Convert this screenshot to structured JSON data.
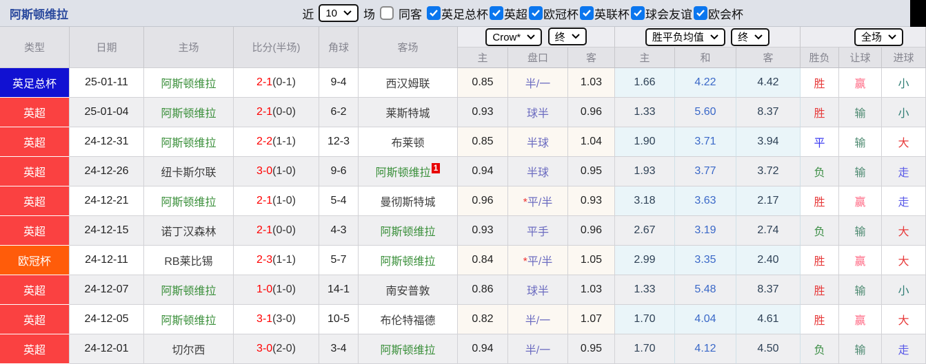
{
  "toolbar": {
    "title": "阿斯顿维拉",
    "recent_label": "近",
    "matches_select": "10",
    "matches_label": "场",
    "same_venue_label": "同客",
    "same_venue_checked": false,
    "league_filters": [
      {
        "label": "英足总杯",
        "checked": true
      },
      {
        "label": "英超",
        "checked": true
      },
      {
        "label": "欧冠杯",
        "checked": true
      },
      {
        "label": "英联杯",
        "checked": true
      },
      {
        "label": "球会友谊",
        "checked": true
      },
      {
        "label": "欧会杯",
        "checked": true
      }
    ]
  },
  "controls": {
    "bookmaker_select": "Crow*",
    "bookmaker_time_select": "终",
    "odds_select": "胜平负均值",
    "odds_time_select": "终",
    "scope_select": "全场"
  },
  "table": {
    "headers": {
      "type": "类型",
      "date": "日期",
      "home": "主场",
      "score": "比分(半场)",
      "corners": "角球",
      "away": "客场",
      "ah_home": "主",
      "ah_line": "盘口",
      "ah_away": "客",
      "avg_home": "主",
      "avg_draw": "和",
      "avg_away": "客",
      "result": "胜负",
      "handicap": "让球",
      "goals": "进球"
    },
    "rows": [
      {
        "league": "英足总杯",
        "date": "25-01-11",
        "home": "阿斯顿维拉",
        "home_villa": true,
        "score": "2-1",
        "half": "(0-1)",
        "corners": "9-4",
        "away": "西汉姆联",
        "away_villa": false,
        "away_sup": "",
        "ah_home": "0.85",
        "ah_star": false,
        "ah_line": "半/一",
        "ah_away": "1.03",
        "avg_home": "1.66",
        "avg_draw": "4.22",
        "avg_away": "4.42",
        "result": "胜",
        "result_key": "win",
        "handicap": "赢",
        "handicap_key": "win",
        "goals": "小",
        "goals_key": "under"
      },
      {
        "league": "英超",
        "date": "25-01-04",
        "home": "阿斯顿维拉",
        "home_villa": true,
        "score": "2-1",
        "half": "(0-0)",
        "corners": "6-2",
        "away": "莱斯特城",
        "away_villa": false,
        "away_sup": "",
        "ah_home": "0.93",
        "ah_star": false,
        "ah_line": "球半",
        "ah_away": "0.96",
        "avg_home": "1.33",
        "avg_draw": "5.60",
        "avg_away": "8.37",
        "result": "胜",
        "result_key": "win",
        "handicap": "输",
        "handicap_key": "lose",
        "goals": "小",
        "goals_key": "under"
      },
      {
        "league": "英超",
        "date": "24-12-31",
        "home": "阿斯顿维拉",
        "home_villa": true,
        "score": "2-2",
        "half": "(1-1)",
        "corners": "12-3",
        "away": "布莱顿",
        "away_villa": false,
        "away_sup": "",
        "ah_home": "0.85",
        "ah_star": false,
        "ah_line": "半球",
        "ah_away": "1.04",
        "avg_home": "1.90",
        "avg_draw": "3.71",
        "avg_away": "3.94",
        "result": "平",
        "result_key": "draw",
        "handicap": "输",
        "handicap_key": "lose",
        "goals": "大",
        "goals_key": "over"
      },
      {
        "league": "英超",
        "date": "24-12-26",
        "home": "纽卡斯尔联",
        "home_villa": false,
        "score": "3-0",
        "half": "(1-0)",
        "corners": "9-6",
        "away": "阿斯顿维拉",
        "away_villa": true,
        "away_sup": "1",
        "ah_home": "0.94",
        "ah_star": false,
        "ah_line": "半球",
        "ah_away": "0.95",
        "avg_home": "1.93",
        "avg_draw": "3.77",
        "avg_away": "3.72",
        "result": "负",
        "result_key": "lose",
        "handicap": "输",
        "handicap_key": "lose",
        "goals": "走",
        "goals_key": "void"
      },
      {
        "league": "英超",
        "date": "24-12-21",
        "home": "阿斯顿维拉",
        "home_villa": true,
        "score": "2-1",
        "half": "(1-0)",
        "corners": "5-4",
        "away": "曼彻斯特城",
        "away_villa": false,
        "away_sup": "",
        "ah_home": "0.96",
        "ah_star": true,
        "ah_line": "平/半",
        "ah_away": "0.93",
        "avg_home": "3.18",
        "avg_draw": "3.63",
        "avg_away": "2.17",
        "result": "胜",
        "result_key": "win",
        "handicap": "赢",
        "handicap_key": "win",
        "goals": "走",
        "goals_key": "void"
      },
      {
        "league": "英超",
        "date": "24-12-15",
        "home": "诺丁汉森林",
        "home_villa": false,
        "score": "2-1",
        "half": "(0-0)",
        "corners": "4-3",
        "away": "阿斯顿维拉",
        "away_villa": true,
        "away_sup": "",
        "ah_home": "0.93",
        "ah_star": false,
        "ah_line": "平手",
        "ah_away": "0.96",
        "avg_home": "2.67",
        "avg_draw": "3.19",
        "avg_away": "2.74",
        "result": "负",
        "result_key": "lose",
        "handicap": "输",
        "handicap_key": "lose",
        "goals": "大",
        "goals_key": "over"
      },
      {
        "league": "欧冠杯",
        "date": "24-12-11",
        "home": "RB莱比锡",
        "home_villa": false,
        "score": "2-3",
        "half": "(1-1)",
        "corners": "5-7",
        "away": "阿斯顿维拉",
        "away_villa": true,
        "away_sup": "",
        "ah_home": "0.84",
        "ah_star": true,
        "ah_line": "平/半",
        "ah_away": "1.05",
        "avg_home": "2.99",
        "avg_draw": "3.35",
        "avg_away": "2.40",
        "result": "胜",
        "result_key": "win",
        "handicap": "赢",
        "handicap_key": "win",
        "goals": "大",
        "goals_key": "over"
      },
      {
        "league": "英超",
        "date": "24-12-07",
        "home": "阿斯顿维拉",
        "home_villa": true,
        "score": "1-0",
        "half": "(1-0)",
        "corners": "14-1",
        "away": "南安普敦",
        "away_villa": false,
        "away_sup": "",
        "ah_home": "0.86",
        "ah_star": false,
        "ah_line": "球半",
        "ah_away": "1.03",
        "avg_home": "1.33",
        "avg_draw": "5.48",
        "avg_away": "8.37",
        "result": "胜",
        "result_key": "win",
        "handicap": "输",
        "handicap_key": "lose",
        "goals": "小",
        "goals_key": "under"
      },
      {
        "league": "英超",
        "date": "24-12-05",
        "home": "阿斯顿维拉",
        "home_villa": true,
        "score": "3-1",
        "half": "(3-0)",
        "corners": "10-5",
        "away": "布伦特福德",
        "away_villa": false,
        "away_sup": "",
        "ah_home": "0.82",
        "ah_star": false,
        "ah_line": "半/一",
        "ah_away": "1.07",
        "avg_home": "1.70",
        "avg_draw": "4.04",
        "avg_away": "4.61",
        "result": "胜",
        "result_key": "win",
        "handicap": "赢",
        "handicap_key": "win",
        "goals": "大",
        "goals_key": "over"
      },
      {
        "league": "英超",
        "date": "24-12-01",
        "home": "切尔西",
        "home_villa": false,
        "score": "3-0",
        "half": "(2-0)",
        "corners": "3-4",
        "away": "阿斯顿维拉",
        "away_villa": true,
        "away_sup": "",
        "ah_home": "0.94",
        "ah_star": false,
        "ah_line": "半/一",
        "ah_away": "0.95",
        "avg_home": "1.70",
        "avg_draw": "4.12",
        "avg_away": "4.50",
        "result": "负",
        "result_key": "lose",
        "handicap": "输",
        "handicap_key": "lose",
        "goals": "走",
        "goals_key": "void"
      }
    ]
  },
  "colors": {
    "league": {
      "英足总杯": "#1111d2",
      "英超": "#fa4141",
      "欧冠杯": "#ff5c0a"
    },
    "result": {
      "win": "#e73a3a",
      "draw": "#3a3af2",
      "lose": "#3f9048"
    },
    "handicap": {
      "win": "#ff6a85",
      "lose": "#4f8b72"
    },
    "goals": {
      "over": "#e73a3a",
      "under": "#2f7d74",
      "void": "#5a5ae8"
    },
    "team_highlight": "#3a8f3a",
    "score_red": "#ff0000",
    "draw_odds_blue": "#3a68c8",
    "title_blue": "#2b4a9e",
    "checkbox_blue": "#0b76ee"
  }
}
